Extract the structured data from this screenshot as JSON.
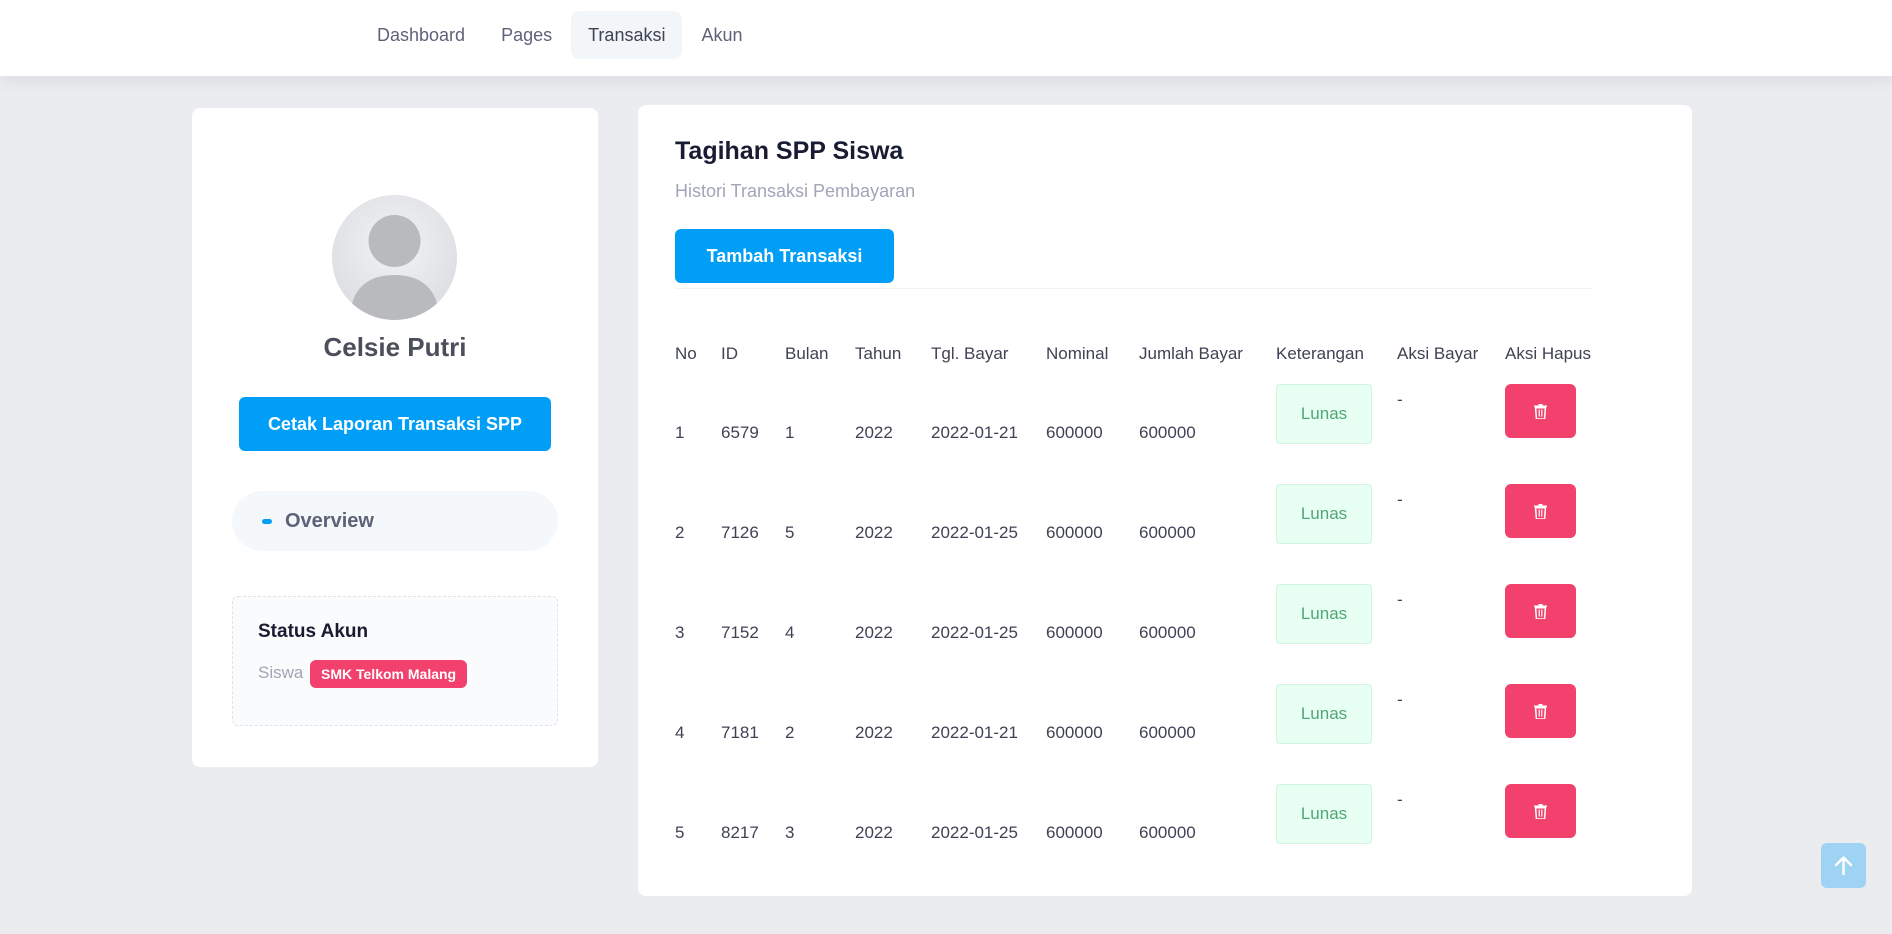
{
  "nav": {
    "items": [
      {
        "label": "Dashboard",
        "active": false
      },
      {
        "label": "Pages",
        "active": false
      },
      {
        "label": "Transaksi",
        "active": true
      },
      {
        "label": "Akun",
        "active": false
      }
    ]
  },
  "profile": {
    "name": "Celsie Putri",
    "print_button": "Cetak Laporan Transaksi SPP",
    "overview_label": "Overview",
    "status": {
      "title": "Status Akun",
      "role": "Siswa",
      "school_badge": "SMK Telkom Malang"
    }
  },
  "main": {
    "title": "Tagihan SPP Siswa",
    "subtitle": "Histori Transaksi Pembayaran",
    "add_button": "Tambah Transaksi",
    "table": {
      "headers": [
        "No",
        "ID",
        "Bulan",
        "Tahun",
        "Tgl. Bayar",
        "Nominal",
        "Jumlah Bayar",
        "Keterangan",
        "Aksi Bayar",
        "Aksi Hapus"
      ],
      "rows": [
        {
          "no": "1",
          "id": "6579",
          "bulan": "1",
          "tahun": "2022",
          "tgl": "2022-01-21",
          "nominal": "600000",
          "jumlah": "600000",
          "keterangan": "Lunas",
          "aksi_bayar": "-"
        },
        {
          "no": "2",
          "id": "7126",
          "bulan": "5",
          "tahun": "2022",
          "tgl": "2022-01-25",
          "nominal": "600000",
          "jumlah": "600000",
          "keterangan": "Lunas",
          "aksi_bayar": "-"
        },
        {
          "no": "3",
          "id": "7152",
          "bulan": "4",
          "tahun": "2022",
          "tgl": "2022-01-25",
          "nominal": "600000",
          "jumlah": "600000",
          "keterangan": "Lunas",
          "aksi_bayar": "-"
        },
        {
          "no": "4",
          "id": "7181",
          "bulan": "2",
          "tahun": "2022",
          "tgl": "2022-01-21",
          "nominal": "600000",
          "jumlah": "600000",
          "keterangan": "Lunas",
          "aksi_bayar": "-"
        },
        {
          "no": "5",
          "id": "8217",
          "bulan": "3",
          "tahun": "2022",
          "tgl": "2022-01-25",
          "nominal": "600000",
          "jumlah": "600000",
          "keterangan": "Lunas",
          "aksi_bayar": "-"
        }
      ]
    }
  },
  "icons": {
    "avatar": "user-silhouette-icon",
    "delete": "trash-icon",
    "scroll_top": "arrow-up-icon"
  },
  "colors": {
    "primary": "#009ef7",
    "danger": "#f1416c",
    "success_bg": "#e8fff3"
  }
}
